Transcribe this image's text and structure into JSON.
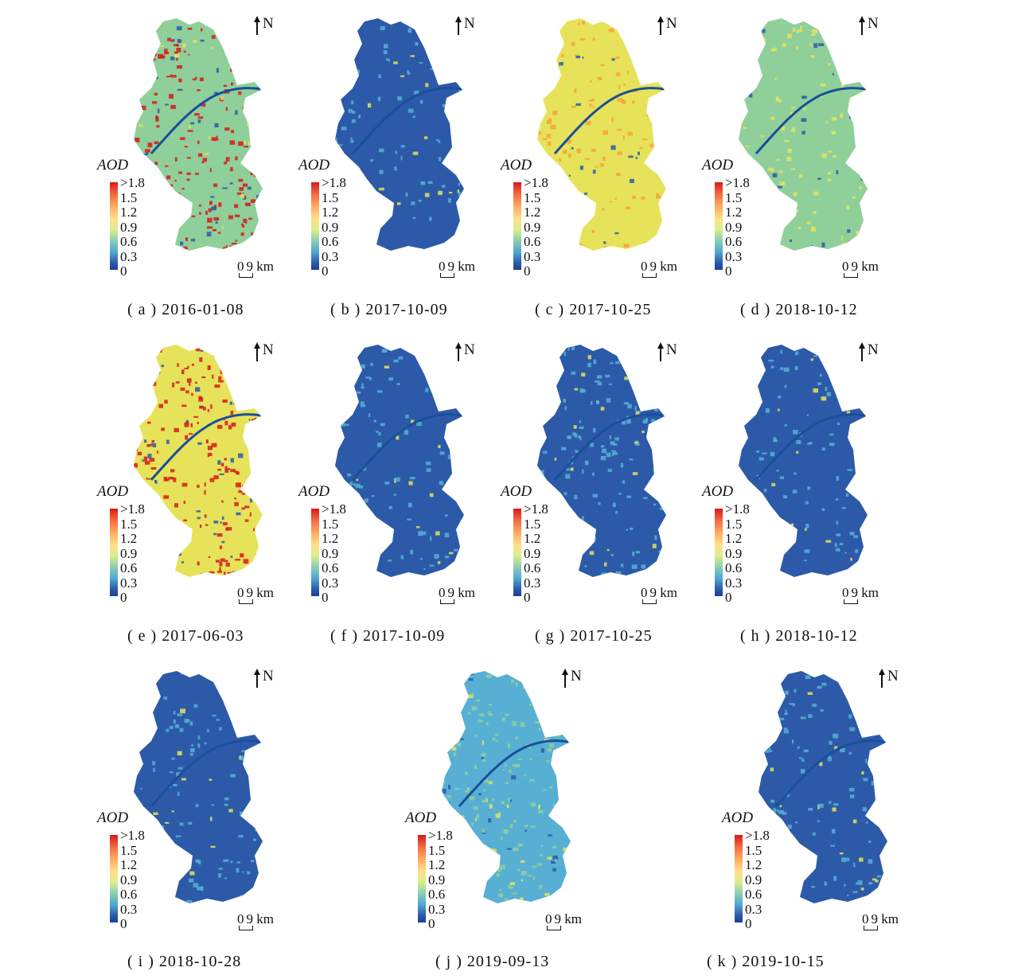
{
  "colors": {
    "blue": "#2c5aa8",
    "cyan": "#57b0d4",
    "green": "#8fcf9a",
    "yellow": "#e6e35a",
    "orange": "#f4a340",
    "red": "#d7191c",
    "river": "#1b4f9b"
  },
  "north_label": "N",
  "legend": {
    "title": "AOD",
    "ticks": [
      ">1.8",
      "1.5",
      "1.2",
      "0.9",
      "0.6",
      "0.3",
      "0"
    ]
  },
  "scale": {
    "start": "0",
    "end": "9",
    "unit": "km"
  },
  "panels": [
    {
      "id": "a",
      "caption": "( a ) 2016-01-08",
      "base": "green",
      "spots": "red",
      "density": 0.55
    },
    {
      "id": "b",
      "caption": "( b ) 2017-10-09",
      "base": "blue",
      "spots": "cyan",
      "density": 0.15
    },
    {
      "id": "c",
      "caption": "( c ) 2017-10-25",
      "base": "yellow",
      "spots": "orange",
      "density": 0.3
    },
    {
      "id": "d",
      "caption": "( d ) 2018-10-12",
      "base": "green",
      "spots": "yellow",
      "density": 0.2
    },
    {
      "id": "e",
      "caption": "( e ) 2017-06-03",
      "base": "yellow",
      "spots": "red",
      "density": 0.55
    },
    {
      "id": "f",
      "caption": "( f ) 2017-10-09",
      "base": "blue",
      "spots": "cyan",
      "density": 0.2
    },
    {
      "id": "g",
      "caption": "( g ) 2017-10-25",
      "base": "blue",
      "spots": "cyan",
      "density": 0.35
    },
    {
      "id": "h",
      "caption": "( h ) 2018-10-12",
      "base": "blue",
      "spots": "cyan",
      "density": 0.25
    },
    {
      "id": "i",
      "caption": "( i ) 2018-10-28",
      "base": "blue",
      "spots": "cyan",
      "density": 0.25
    },
    {
      "id": "j",
      "caption": "( j ) 2019-09-13",
      "base": "cyan",
      "spots": "green",
      "density": 0.5
    },
    {
      "id": "k",
      "caption": "( k ) 2019-10-15",
      "base": "blue",
      "spots": "cyan",
      "density": 0.25
    }
  ]
}
